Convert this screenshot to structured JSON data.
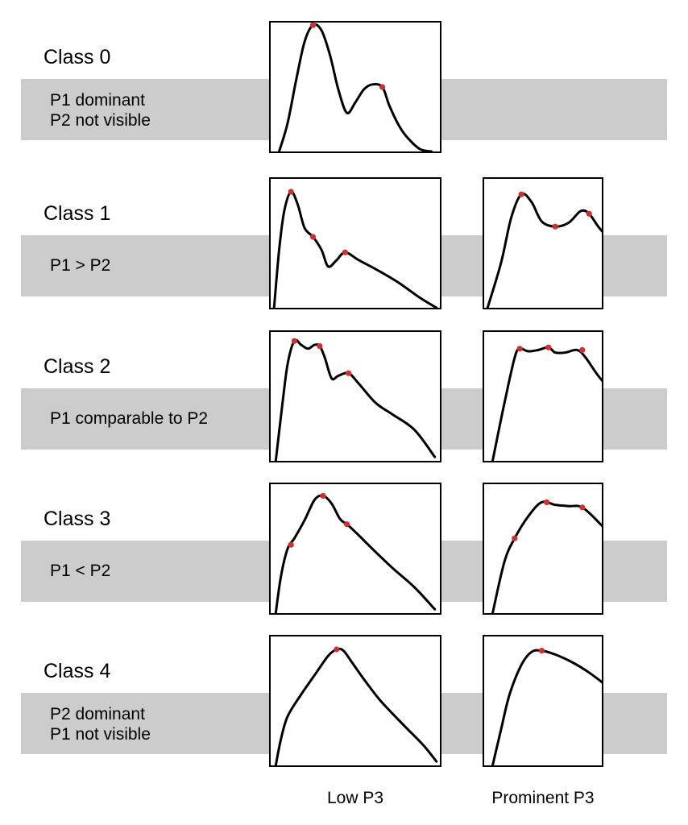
{
  "classes": [
    {
      "title": "Class 0",
      "description": [
        "P1 dominant",
        "P2 not visible"
      ],
      "panels": {
        "low": {
          "curve": [
            [
              0.05,
              1.0
            ],
            [
              0.1,
              0.78
            ],
            [
              0.15,
              0.45
            ],
            [
              0.2,
              0.15
            ],
            [
              0.25,
              0.02
            ],
            [
              0.3,
              0.06
            ],
            [
              0.35,
              0.25
            ],
            [
              0.4,
              0.52
            ],
            [
              0.45,
              0.7
            ],
            [
              0.5,
              0.62
            ],
            [
              0.55,
              0.52
            ],
            [
              0.6,
              0.48
            ],
            [
              0.66,
              0.5
            ],
            [
              0.7,
              0.64
            ],
            [
              0.75,
              0.78
            ],
            [
              0.8,
              0.88
            ],
            [
              0.88,
              0.98
            ],
            [
              0.95,
              1.0
            ]
          ],
          "peaks": [
            [
              0.25,
              0.02
            ],
            [
              0.66,
              0.5
            ]
          ]
        }
      }
    },
    {
      "title": "Class 1",
      "description": [
        "P1 > P2"
      ],
      "panels": {
        "low": {
          "curve": [
            [
              0.02,
              1.0
            ],
            [
              0.05,
              0.55
            ],
            [
              0.08,
              0.25
            ],
            [
              0.12,
              0.1
            ],
            [
              0.16,
              0.2
            ],
            [
              0.2,
              0.38
            ],
            [
              0.25,
              0.45
            ],
            [
              0.3,
              0.55
            ],
            [
              0.34,
              0.68
            ],
            [
              0.39,
              0.63
            ],
            [
              0.44,
              0.57
            ],
            [
              0.52,
              0.63
            ],
            [
              0.62,
              0.7
            ],
            [
              0.75,
              0.8
            ],
            [
              0.88,
              0.92
            ],
            [
              0.98,
              1.0
            ]
          ],
          "peaks": [
            [
              0.12,
              0.1
            ],
            [
              0.25,
              0.45
            ],
            [
              0.44,
              0.57
            ]
          ]
        },
        "prom": {
          "curve": [
            [
              0.02,
              1.0
            ],
            [
              0.1,
              0.65
            ],
            [
              0.16,
              0.3
            ],
            [
              0.22,
              0.12
            ],
            [
              0.28,
              0.18
            ],
            [
              0.34,
              0.33
            ],
            [
              0.42,
              0.37
            ],
            [
              0.5,
              0.34
            ],
            [
              0.57,
              0.25
            ],
            [
              0.62,
              0.27
            ],
            [
              0.68,
              0.38
            ],
            [
              0.78,
              0.53
            ],
            [
              0.88,
              0.68
            ],
            [
              0.98,
              0.85
            ],
            [
              1.05,
              0.98
            ]
          ],
          "peaks": [
            [
              0.22,
              0.12
            ],
            [
              0.42,
              0.37
            ],
            [
              0.62,
              0.27
            ]
          ]
        }
      }
    },
    {
      "title": "Class 2",
      "description": [
        "P1 comparable to P2"
      ],
      "panels": {
        "low": {
          "curve": [
            [
              0.03,
              1.0
            ],
            [
              0.07,
              0.55
            ],
            [
              0.1,
              0.25
            ],
            [
              0.14,
              0.07
            ],
            [
              0.18,
              0.1
            ],
            [
              0.22,
              0.13
            ],
            [
              0.26,
              0.1
            ],
            [
              0.29,
              0.11
            ],
            [
              0.32,
              0.2
            ],
            [
              0.36,
              0.36
            ],
            [
              0.4,
              0.34
            ],
            [
              0.46,
              0.32
            ],
            [
              0.52,
              0.4
            ],
            [
              0.62,
              0.55
            ],
            [
              0.72,
              0.64
            ],
            [
              0.85,
              0.76
            ],
            [
              0.97,
              0.97
            ]
          ],
          "peaks": [
            [
              0.14,
              0.07
            ],
            [
              0.29,
              0.11
            ],
            [
              0.46,
              0.32
            ]
          ]
        },
        "prom": {
          "curve": [
            [
              0.05,
              1.0
            ],
            [
              0.12,
              0.55
            ],
            [
              0.18,
              0.2
            ],
            [
              0.21,
              0.13
            ],
            [
              0.26,
              0.15
            ],
            [
              0.32,
              0.14
            ],
            [
              0.38,
              0.12
            ],
            [
              0.42,
              0.16
            ],
            [
              0.48,
              0.16
            ],
            [
              0.55,
              0.14
            ],
            [
              0.6,
              0.2
            ],
            [
              0.68,
              0.35
            ],
            [
              0.8,
              0.53
            ],
            [
              0.92,
              0.72
            ],
            [
              1.05,
              0.88
            ],
            [
              1.3,
              1.0
            ]
          ],
          "peaks": [
            [
              0.21,
              0.13
            ],
            [
              0.38,
              0.12
            ],
            [
              0.58,
              0.14
            ]
          ]
        }
      }
    },
    {
      "title": "Class 3",
      "description": [
        "P1 < P2"
      ],
      "panels": {
        "low": {
          "curve": [
            [
              0.03,
              1.0
            ],
            [
              0.06,
              0.72
            ],
            [
              0.1,
              0.5
            ],
            [
              0.14,
              0.42
            ],
            [
              0.2,
              0.28
            ],
            [
              0.26,
              0.12
            ],
            [
              0.31,
              0.09
            ],
            [
              0.36,
              0.15
            ],
            [
              0.41,
              0.27
            ],
            [
              0.45,
              0.31
            ],
            [
              0.5,
              0.37
            ],
            [
              0.6,
              0.5
            ],
            [
              0.72,
              0.65
            ],
            [
              0.85,
              0.8
            ],
            [
              0.97,
              0.97
            ]
          ],
          "peaks": [
            [
              0.12,
              0.47
            ],
            [
              0.31,
              0.09
            ],
            [
              0.45,
              0.31
            ]
          ]
        },
        "prom": {
          "curve": [
            [
              0.05,
              1.0
            ],
            [
              0.12,
              0.6
            ],
            [
              0.18,
              0.42
            ],
            [
              0.26,
              0.25
            ],
            [
              0.34,
              0.14
            ],
            [
              0.42,
              0.16
            ],
            [
              0.5,
              0.17
            ],
            [
              0.58,
              0.18
            ],
            [
              0.68,
              0.3
            ],
            [
              0.8,
              0.47
            ],
            [
              0.92,
              0.63
            ],
            [
              1.05,
              0.8
            ],
            [
              1.32,
              0.98
            ]
          ],
          "peaks": [
            [
              0.18,
              0.42
            ],
            [
              0.37,
              0.14
            ],
            [
              0.58,
              0.18
            ]
          ]
        }
      }
    },
    {
      "title": "Class 4",
      "description": [
        "P2 dominant",
        "P1 not visible"
      ],
      "panels": {
        "low": {
          "curve": [
            [
              0.03,
              1.0
            ],
            [
              0.06,
              0.8
            ],
            [
              0.1,
              0.62
            ],
            [
              0.18,
              0.45
            ],
            [
              0.27,
              0.28
            ],
            [
              0.34,
              0.15
            ],
            [
              0.39,
              0.1
            ],
            [
              0.43,
              0.11
            ],
            [
              0.48,
              0.2
            ],
            [
              0.55,
              0.33
            ],
            [
              0.65,
              0.5
            ],
            [
              0.78,
              0.68
            ],
            [
              0.9,
              0.84
            ],
            [
              0.98,
              0.97
            ]
          ],
          "peaks": [
            [
              0.39,
              0.1
            ]
          ]
        },
        "prom": {
          "curve": [
            [
              0.05,
              1.0
            ],
            [
              0.1,
              0.72
            ],
            [
              0.15,
              0.45
            ],
            [
              0.22,
              0.22
            ],
            [
              0.28,
              0.12
            ],
            [
              0.34,
              0.11
            ],
            [
              0.42,
              0.14
            ],
            [
              0.52,
              0.2
            ],
            [
              0.62,
              0.28
            ],
            [
              0.72,
              0.38
            ],
            [
              0.84,
              0.52
            ],
            [
              0.96,
              0.68
            ],
            [
              1.08,
              0.83
            ],
            [
              1.3,
              0.98
            ]
          ],
          "peaks": [
            [
              0.34,
              0.11
            ]
          ]
        }
      }
    }
  ],
  "columns": {
    "low_label": "Low P3",
    "prominent_label": "Prominent P3"
  }
}
